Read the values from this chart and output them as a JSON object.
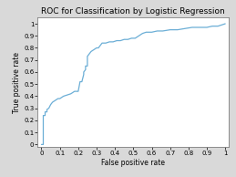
{
  "title": "ROC for Classification by Logistic Regression",
  "xlabel": "False positive rate",
  "ylabel": "True positive rate",
  "xlim": [
    -0.02,
    1.02
  ],
  "ylim": [
    -0.02,
    1.05
  ],
  "xticks": [
    0,
    0.1,
    0.2,
    0.3,
    0.4,
    0.5,
    0.6,
    0.7,
    0.8,
    0.9,
    1
  ],
  "yticks": [
    0,
    0.1,
    0.2,
    0.3,
    0.4,
    0.5,
    0.6,
    0.7,
    0.8,
    0.9,
    1
  ],
  "xtick_labels": [
    "0",
    "0.1",
    "0.2",
    "0.3",
    "0.4",
    "0.5",
    "0.6",
    "0.7",
    "0.8",
    "0.9",
    "1"
  ],
  "ytick_labels": [
    "0",
    "0.1",
    "0.2",
    "0.3",
    "0.4",
    "0.5",
    "0.6",
    "0.7",
    "0.8",
    "0.9",
    "1"
  ],
  "line_color": "#6baed6",
  "line_width": 0.9,
  "background_color": "#d9d9d9",
  "axes_background": "#ffffff",
  "title_fontsize": 6.5,
  "label_fontsize": 5.5,
  "tick_fontsize": 5.0,
  "fpr": [
    0.0,
    0.01,
    0.01,
    0.02,
    0.02,
    0.03,
    0.03,
    0.04,
    0.05,
    0.06,
    0.07,
    0.08,
    0.09,
    0.1,
    0.12,
    0.14,
    0.16,
    0.18,
    0.2,
    0.21,
    0.22,
    0.23,
    0.23,
    0.24,
    0.24,
    0.25,
    0.25,
    0.26,
    0.27,
    0.28,
    0.29,
    0.3,
    0.31,
    0.32,
    0.33,
    0.35,
    0.37,
    0.39,
    0.41,
    0.43,
    0.45,
    0.47,
    0.49,
    0.51,
    0.53,
    0.55,
    0.57,
    0.6,
    0.63,
    0.66,
    0.7,
    0.74,
    0.78,
    0.82,
    0.86,
    0.9,
    0.93,
    0.96,
    0.98,
    1.0
  ],
  "tpr": [
    0.0,
    0.0,
    0.24,
    0.24,
    0.27,
    0.27,
    0.29,
    0.3,
    0.33,
    0.35,
    0.36,
    0.37,
    0.38,
    0.38,
    0.4,
    0.41,
    0.42,
    0.44,
    0.44,
    0.52,
    0.52,
    0.58,
    0.6,
    0.62,
    0.65,
    0.65,
    0.73,
    0.75,
    0.77,
    0.78,
    0.79,
    0.8,
    0.8,
    0.82,
    0.84,
    0.84,
    0.85,
    0.85,
    0.86,
    0.86,
    0.87,
    0.87,
    0.88,
    0.88,
    0.9,
    0.92,
    0.93,
    0.93,
    0.94,
    0.94,
    0.95,
    0.95,
    0.96,
    0.97,
    0.97,
    0.97,
    0.98,
    0.98,
    0.99,
    1.0
  ]
}
